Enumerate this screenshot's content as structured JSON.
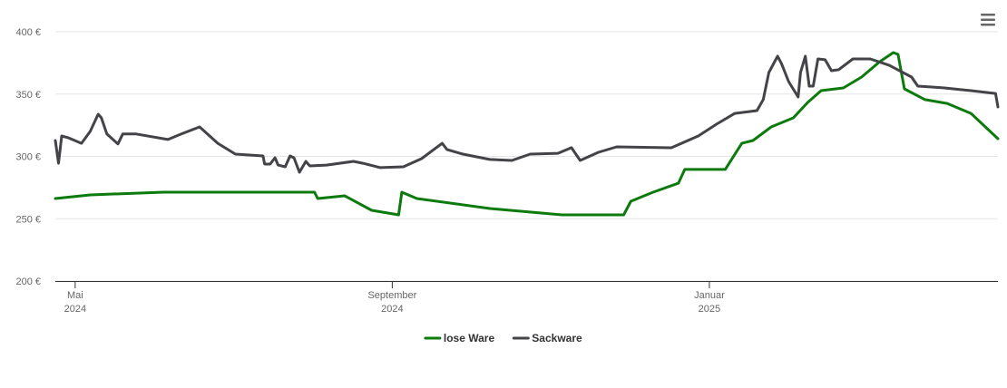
{
  "chart_data": {
    "type": "line",
    "x_unit_note_free": null,
    "xlim": [
      -0.25,
      11.64
    ],
    "xticks": [
      {
        "value": 0,
        "label": [
          "Mai",
          "2024"
        ]
      },
      {
        "value": 4,
        "label": [
          "September",
          "2024"
        ]
      },
      {
        "value": 8,
        "label": [
          "Januar",
          "2025"
        ]
      }
    ],
    "ylim": [
      200,
      400
    ],
    "yticks": [
      {
        "value": 200,
        "label": "200 €"
      },
      {
        "value": 250,
        "label": "250 €"
      },
      {
        "value": 300,
        "label": "300 €"
      },
      {
        "value": 350,
        "label": "350 €"
      },
      {
        "value": 400,
        "label": "400 €"
      }
    ],
    "grid": true,
    "legend": "bottom",
    "series": [
      {
        "name": "lose Ware",
        "color": "#0d7a0d",
        "x": [
          -0.25,
          0.19,
          1.11,
          3.02,
          3.06,
          3.4,
          3.74,
          4.08,
          4.12,
          4.31,
          5.23,
          6.14,
          6.92,
          7.01,
          7.29,
          7.61,
          7.69,
          8.2,
          8.41,
          8.55,
          8.78,
          9.06,
          9.24,
          9.41,
          9.69,
          9.92,
          10.15,
          10.32,
          10.38,
          10.46,
          10.72,
          11.0,
          11.3,
          11.64
        ],
        "values": [
          266.2,
          269.1,
          271.3,
          271.3,
          266.2,
          268.4,
          256.7,
          253.1,
          271.3,
          266.2,
          258.2,
          253.1,
          253.1,
          264,
          271.3,
          278.5,
          289.5,
          289.5,
          310.5,
          312.7,
          323.6,
          330.9,
          343.3,
          352.7,
          354.9,
          363.6,
          376,
          383.3,
          381.8,
          354.2,
          345.5,
          342.5,
          334.5,
          314.2
        ]
      },
      {
        "name": "Sackware",
        "color": "#434348",
        "x": [
          -0.25,
          -0.21,
          -0.17,
          -0.09,
          0.08,
          0.19,
          0.29,
          0.33,
          0.4,
          0.54,
          0.6,
          0.77,
          1.17,
          1.34,
          1.57,
          1.8,
          2.02,
          2.37,
          2.39,
          2.46,
          2.52,
          2.56,
          2.65,
          2.71,
          2.76,
          2.83,
          2.91,
          2.96,
          3.17,
          3.51,
          3.63,
          3.85,
          4.14,
          4.37,
          4.63,
          4.69,
          4.89,
          5.23,
          5.51,
          5.74,
          6.09,
          6.26,
          6.37,
          6.6,
          6.83,
          7.52,
          7.86,
          8.09,
          8.32,
          8.6,
          8.68,
          8.75,
          8.86,
          8.91,
          9.0,
          9.12,
          9.15,
          9.21,
          9.26,
          9.31,
          9.37,
          9.46,
          9.54,
          9.63,
          9.81,
          10.03,
          10.27,
          10.55,
          10.63,
          10.95,
          11.3,
          11.61,
          11.64
        ],
        "values": [
          312.7,
          294.5,
          316.4,
          315,
          310.5,
          320,
          333.8,
          331,
          318,
          310,
          318,
          318,
          313.5,
          318,
          323.6,
          310.5,
          301.8,
          300.4,
          293.8,
          293.8,
          298.9,
          293,
          291.6,
          300.4,
          298.9,
          287.3,
          296,
          292.4,
          293,
          296,
          294.5,
          291,
          291.6,
          298.2,
          310.5,
          305.5,
          301.8,
          297.5,
          296.7,
          301.8,
          302.5,
          307,
          296.7,
          303.3,
          307.6,
          306.9,
          316.4,
          325.8,
          334.5,
          336.7,
          345.5,
          367.3,
          380.4,
          374.5,
          360,
          347.6,
          367.3,
          380.4,
          356.4,
          356.4,
          378.2,
          377.5,
          368.7,
          369.5,
          378.2,
          378.2,
          373,
          363.6,
          356.4,
          355,
          352.7,
          350.5,
          339.6
        ]
      }
    ]
  }
}
